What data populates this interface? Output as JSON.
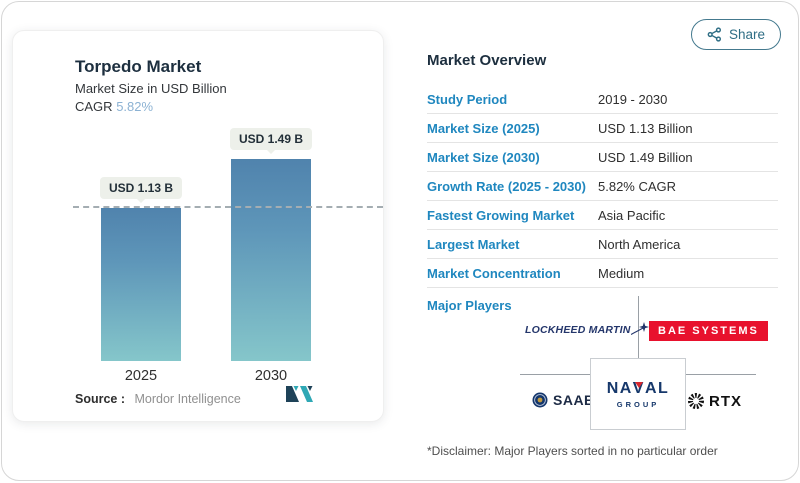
{
  "header": {
    "share_label": "Share"
  },
  "chart": {
    "title": "Torpedo Market",
    "subtitle": "Market Size in USD Billion",
    "cagr_label": "CAGR",
    "cagr_value": "5.82%",
    "source_label": "Source :",
    "source_value": "Mordor Intelligence"
  },
  "chart_data": {
    "type": "bar",
    "title": "Torpedo Market",
    "ylabel": "Market Size in USD Billion",
    "categories": [
      "2025",
      "2030"
    ],
    "values": [
      1.13,
      1.49
    ],
    "bar_labels": [
      "USD 1.13 B",
      "USD 1.49 B"
    ],
    "ylim": [
      0,
      1.49
    ],
    "reference_line": 1.13,
    "grid": false,
    "legend": false,
    "cagr": "5.82%"
  },
  "overview": {
    "title": "Market Overview",
    "rows": [
      {
        "label": "Study Period",
        "value": "2019 - 2030"
      },
      {
        "label": "Market Size (2025)",
        "value": "USD 1.13 Billion"
      },
      {
        "label": "Market Size (2030)",
        "value": "USD 1.49 Billion"
      },
      {
        "label": "Growth Rate (2025 - 2030)",
        "value": "5.82% CAGR"
      },
      {
        "label": "Fastest Growing Market",
        "value": "Asia Pacific"
      },
      {
        "label": "Largest Market",
        "value": "North America"
      },
      {
        "label": "Market Concentration",
        "value": "Medium"
      }
    ],
    "major_players_label": "Major Players",
    "players": {
      "lockheed": "LOCKHEED MARTIN",
      "bae": "BAE SYSTEMS",
      "saab": "SAAB",
      "naval_parts": [
        "NA",
        "V",
        "AL"
      ],
      "naval_group_word": "GROUP",
      "rtx": "RTX"
    },
    "disclaimer": "*Disclaimer: Major Players sorted in no particular order"
  },
  "colors": {
    "accent_blue": "#1f87bf",
    "heading_navy": "#1d2f3f",
    "cagr_blue": "#8cb2d3",
    "bar_gradient_top": "#5083ad",
    "bar_gradient_bottom": "#85c6ca",
    "pill_bg": "#edf0ea",
    "share_teal": "#2f6e85",
    "bae_red": "#e8112d",
    "lockheed_navy": "#24366b",
    "naval_navy": "#16386b",
    "naval_red": "#d7282f",
    "mordor_navy": "#1e4258",
    "mordor_teal": "#2fa8b5"
  }
}
